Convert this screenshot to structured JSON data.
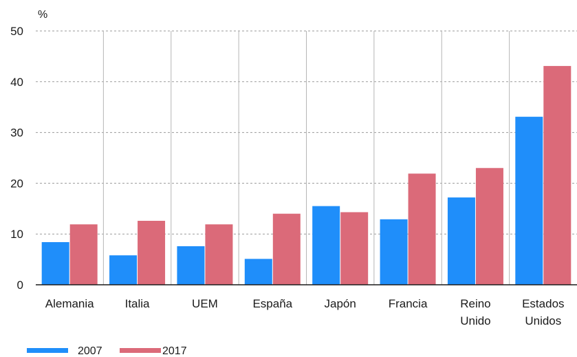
{
  "chart_data": {
    "type": "bar",
    "unit_label": "%",
    "categories": [
      [
        "Alemania"
      ],
      [
        "Italia"
      ],
      [
        "UEM"
      ],
      [
        "España"
      ],
      [
        "Japón"
      ],
      [
        "Francia"
      ],
      [
        "Reino",
        "Unido"
      ],
      [
        "Estados",
        "Unidos"
      ]
    ],
    "series": [
      {
        "name": "2007",
        "color": "#1f8efa",
        "values": [
          8.4,
          5.8,
          7.6,
          5.1,
          15.5,
          12.9,
          17.2,
          33.1
        ]
      },
      {
        "name": "2017",
        "color": "#db6a79",
        "values": [
          11.9,
          12.6,
          11.9,
          14.0,
          14.3,
          21.9,
          23.0,
          43.1
        ]
      }
    ],
    "ylim": [
      0,
      50
    ],
    "yticks": [
      0,
      10,
      20,
      30,
      40,
      50
    ],
    "grid": true,
    "legend_position": "bottom-left"
  }
}
